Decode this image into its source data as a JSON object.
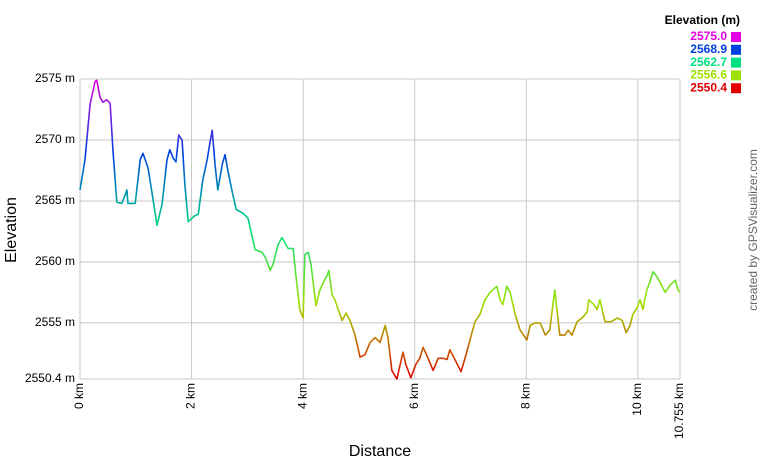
{
  "chart_data": {
    "type": "line",
    "ylabel": "Elevation",
    "xlabel": "Distance",
    "credit": "created by GPSVisualizer.com",
    "xlim": [
      0,
      10.755
    ],
    "ylim": [
      2550.4,
      2575
    ],
    "xticks": [
      {
        "value": 0,
        "label": "0 km"
      },
      {
        "value": 2,
        "label": "2 km"
      },
      {
        "value": 4,
        "label": "4 km"
      },
      {
        "value": 6,
        "label": "6 km"
      },
      {
        "value": 8,
        "label": "8 km"
      },
      {
        "value": 10,
        "label": "10 km"
      },
      {
        "value": 10.755,
        "label": "10.755 km"
      }
    ],
    "yticks": [
      {
        "value": 2550.4,
        "label": "2550.4 m"
      },
      {
        "value": 2555,
        "label": "2555 m"
      },
      {
        "value": 2560,
        "label": "2560 m"
      },
      {
        "value": 2565,
        "label": "2565 m"
      },
      {
        "value": 2570,
        "label": "2570 m"
      },
      {
        "value": 2575,
        "label": "2575 m"
      }
    ],
    "grid": true,
    "legend": {
      "title": "Elevation (m)",
      "values": [
        2575,
        2568.9,
        2562.7,
        2556.6,
        2550.4
      ],
      "value_labels": [
        "2575.0",
        "2568.9",
        "2562.7",
        "2556.6",
        "2550.4"
      ],
      "colors": [
        "#e000e0",
        "#0040e0",
        "#00e080",
        "#a0e000",
        "#e00000"
      ]
    },
    "x": [
      0,
      0.09,
      0.18,
      0.27,
      0.3,
      0.36,
      0.41,
      0.48,
      0.54,
      0.59,
      0.66,
      0.75,
      0.81,
      0.84,
      0.86,
      0.99,
      1.08,
      1.13,
      1.22,
      1.31,
      1.38,
      1.47,
      1.56,
      1.61,
      1.67,
      1.72,
      1.77,
      1.83,
      1.88,
      1.94,
      2.01,
      2.06,
      2.12,
      2.2,
      2.28,
      2.33,
      2.37,
      2.42,
      2.47,
      2.55,
      2.6,
      2.65,
      2.74,
      2.8,
      2.92,
      3.01,
      3.14,
      3.26,
      3.33,
      3.41,
      3.46,
      3.55,
      3.62,
      3.67,
      3.73,
      3.82,
      3.87,
      3.94,
      4.0,
      4.03,
      4.09,
      4.14,
      4.23,
      4.3,
      4.36,
      4.43,
      4.46,
      4.52,
      4.57,
      4.62,
      4.7,
      4.77,
      4.84,
      4.93,
      5.02,
      5.11,
      5.2,
      5.29,
      5.38,
      5.47,
      5.52,
      5.59,
      5.68,
      5.74,
      5.79,
      5.84,
      5.93,
      6.02,
      6.09,
      6.15,
      6.22,
      6.33,
      6.42,
      6.51,
      6.58,
      6.63,
      6.72,
      6.83,
      6.92,
      6.99,
      7.08,
      7.17,
      7.26,
      7.35,
      7.47,
      7.53,
      7.58,
      7.65,
      7.71,
      7.8,
      7.89,
      8.01,
      8.07,
      8.16,
      8.25,
      8.34,
      8.42,
      8.51,
      8.6,
      8.69,
      8.75,
      8.82,
      8.91,
      9.0,
      9.09,
      9.12,
      9.21,
      9.27,
      9.32,
      9.41,
      9.52,
      9.63,
      9.72,
      9.79,
      9.86,
      9.91,
      9.98,
      10.04,
      10.09,
      10.16,
      10.22,
      10.27,
      10.34,
      10.4,
      10.49,
      10.58,
      10.67,
      10.72,
      10.755
    ],
    "values": [
      2565.9,
      2568.4,
      2572.9,
      2574.8,
      2574.9,
      2573.5,
      2573.1,
      2573.3,
      2573.0,
      2569.2,
      2564.9,
      2564.8,
      2565.5,
      2565.9,
      2564.8,
      2564.8,
      2568.4,
      2568.9,
      2567.7,
      2565.1,
      2563.0,
      2564.7,
      2568.4,
      2569.2,
      2568.5,
      2568.2,
      2570.4,
      2570.0,
      2566.3,
      2563.3,
      2563.6,
      2563.8,
      2563.9,
      2566.7,
      2568.4,
      2569.8,
      2570.8,
      2568.0,
      2565.9,
      2568.0,
      2568.8,
      2567.5,
      2565.5,
      2564.3,
      2564.0,
      2563.6,
      2561.0,
      2560.8,
      2560.3,
      2559.3,
      2559.8,
      2561.4,
      2562.0,
      2561.6,
      2561.1,
      2561.1,
      2558.9,
      2556.1,
      2555.4,
      2560.6,
      2560.8,
      2559.8,
      2556.4,
      2557.7,
      2558.3,
      2558.9,
      2559.3,
      2557.3,
      2556.9,
      2556.2,
      2555.2,
      2555.8,
      2555.2,
      2554.0,
      2552.2,
      2552.4,
      2553.4,
      2553.8,
      2553.4,
      2554.8,
      2553.8,
      2551.1,
      2550.4,
      2551.6,
      2552.6,
      2551.6,
      2550.5,
      2551.6,
      2552.1,
      2553.0,
      2552.3,
      2551.1,
      2552.1,
      2552.1,
      2552.0,
      2552.8,
      2552.0,
      2551.0,
      2552.4,
      2553.6,
      2555.1,
      2555.7,
      2556.9,
      2557.5,
      2558.0,
      2556.9,
      2556.5,
      2558.0,
      2557.5,
      2555.7,
      2554.4,
      2553.6,
      2554.8,
      2555.0,
      2555.0,
      2554.0,
      2554.4,
      2557.7,
      2554.0,
      2554.0,
      2554.4,
      2554.0,
      2555.1,
      2555.4,
      2555.9,
      2556.9,
      2556.5,
      2556.1,
      2556.9,
      2555.1,
      2555.1,
      2555.4,
      2555.2,
      2554.2,
      2554.8,
      2555.7,
      2556.2,
      2556.9,
      2556.1,
      2557.7,
      2558.4,
      2559.2,
      2558.8,
      2558.3,
      2557.5,
      2558.1,
      2558.5,
      2557.7,
      2557.5
    ]
  }
}
